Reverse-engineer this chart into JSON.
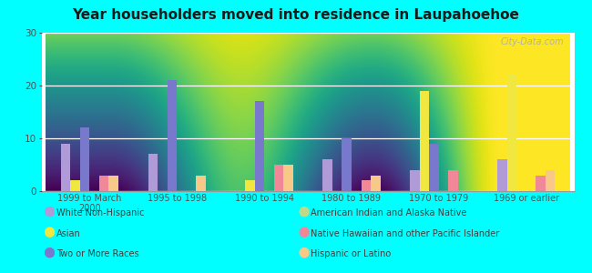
{
  "title": "Year householders moved into residence in Laupahoehoe",
  "background_color": "#00FFFF",
  "categories": [
    "1999 to March\n2000",
    "1995 to 1998",
    "1990 to 1994",
    "1980 to 1989",
    "1970 to 1979",
    "1969 or earlier"
  ],
  "series": [
    {
      "name": "White Non-Hispanic",
      "values": [
        9,
        7,
        0,
        6,
        4,
        6
      ],
      "color": "#b09ad8"
    },
    {
      "name": "Asian",
      "values": [
        2,
        0,
        2,
        0,
        19,
        22
      ],
      "color": "#f0e840"
    },
    {
      "name": "Two or More Races",
      "values": [
        12,
        21,
        17,
        10,
        9,
        0
      ],
      "color": "#7878cc"
    },
    {
      "name": "American Indian and Alaska Native",
      "values": [
        0,
        0,
        0,
        0,
        0,
        0
      ],
      "color": "#c0d888"
    },
    {
      "name": "Native Hawaiian and other Pacific Islander",
      "values": [
        3,
        0,
        5,
        2,
        4,
        3
      ],
      "color": "#f08898"
    },
    {
      "name": "Hispanic or Latino",
      "values": [
        3,
        3,
        5,
        3,
        0,
        4
      ],
      "color": "#f8c888"
    }
  ],
  "ylim": [
    0,
    30
  ],
  "yticks": [
    0,
    10,
    20,
    30
  ],
  "bar_width": 0.11,
  "watermark": "City-Data.com"
}
